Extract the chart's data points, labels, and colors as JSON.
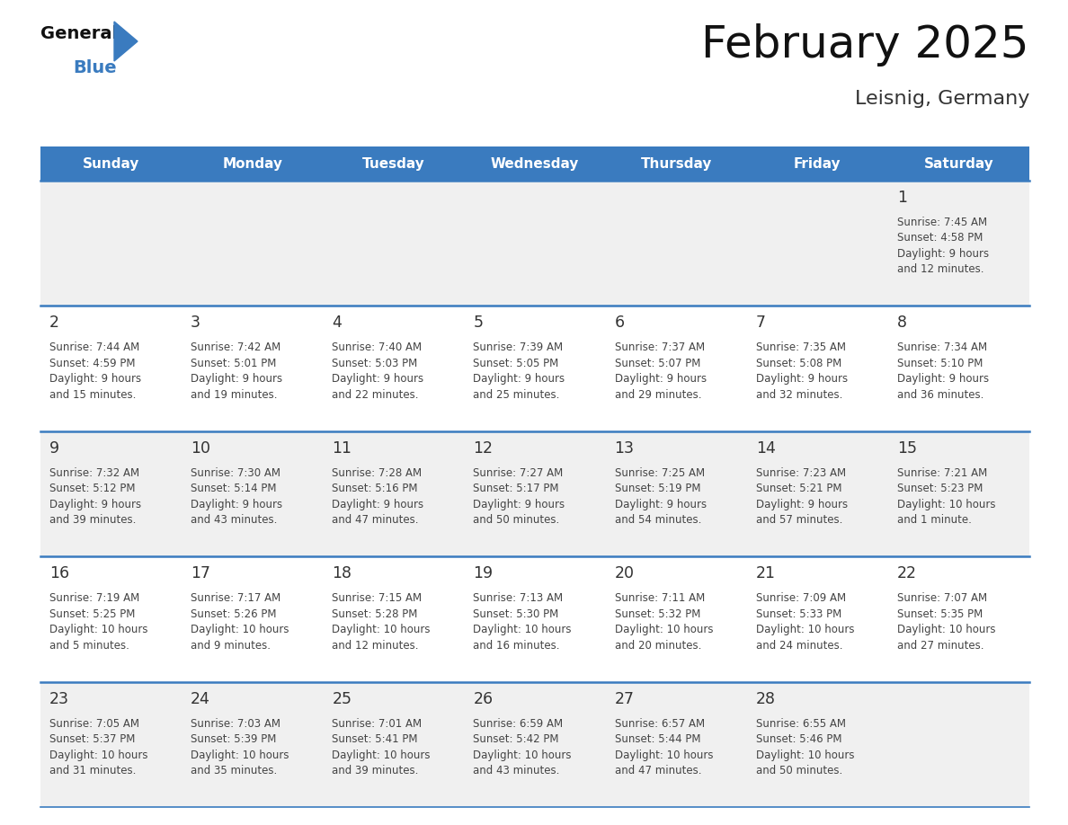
{
  "title": "February 2025",
  "subtitle": "Leisnig, Germany",
  "header_color": "#3a7bbf",
  "header_text_color": "#ffffff",
  "day_names": [
    "Sunday",
    "Monday",
    "Tuesday",
    "Wednesday",
    "Thursday",
    "Friday",
    "Saturday"
  ],
  "background_color": "#ffffff",
  "cell_bg_even": "#f0f0f0",
  "cell_bg_odd": "#ffffff",
  "border_color": "#3a7bbf",
  "number_color": "#333333",
  "text_color": "#444444",
  "days": [
    {
      "day": 1,
      "col": 6,
      "row": 0,
      "sunrise": "7:45 AM",
      "sunset": "4:58 PM",
      "daylight_h": "9 hours",
      "daylight_m": "12 minutes."
    },
    {
      "day": 2,
      "col": 0,
      "row": 1,
      "sunrise": "7:44 AM",
      "sunset": "4:59 PM",
      "daylight_h": "9 hours",
      "daylight_m": "15 minutes."
    },
    {
      "day": 3,
      "col": 1,
      "row": 1,
      "sunrise": "7:42 AM",
      "sunset": "5:01 PM",
      "daylight_h": "9 hours",
      "daylight_m": "19 minutes."
    },
    {
      "day": 4,
      "col": 2,
      "row": 1,
      "sunrise": "7:40 AM",
      "sunset": "5:03 PM",
      "daylight_h": "9 hours",
      "daylight_m": "22 minutes."
    },
    {
      "day": 5,
      "col": 3,
      "row": 1,
      "sunrise": "7:39 AM",
      "sunset": "5:05 PM",
      "daylight_h": "9 hours",
      "daylight_m": "25 minutes."
    },
    {
      "day": 6,
      "col": 4,
      "row": 1,
      "sunrise": "7:37 AM",
      "sunset": "5:07 PM",
      "daylight_h": "9 hours",
      "daylight_m": "29 minutes."
    },
    {
      "day": 7,
      "col": 5,
      "row": 1,
      "sunrise": "7:35 AM",
      "sunset": "5:08 PM",
      "daylight_h": "9 hours",
      "daylight_m": "32 minutes."
    },
    {
      "day": 8,
      "col": 6,
      "row": 1,
      "sunrise": "7:34 AM",
      "sunset": "5:10 PM",
      "daylight_h": "9 hours",
      "daylight_m": "36 minutes."
    },
    {
      "day": 9,
      "col": 0,
      "row": 2,
      "sunrise": "7:32 AM",
      "sunset": "5:12 PM",
      "daylight_h": "9 hours",
      "daylight_m": "39 minutes."
    },
    {
      "day": 10,
      "col": 1,
      "row": 2,
      "sunrise": "7:30 AM",
      "sunset": "5:14 PM",
      "daylight_h": "9 hours",
      "daylight_m": "43 minutes."
    },
    {
      "day": 11,
      "col": 2,
      "row": 2,
      "sunrise": "7:28 AM",
      "sunset": "5:16 PM",
      "daylight_h": "9 hours",
      "daylight_m": "47 minutes."
    },
    {
      "day": 12,
      "col": 3,
      "row": 2,
      "sunrise": "7:27 AM",
      "sunset": "5:17 PM",
      "daylight_h": "9 hours",
      "daylight_m": "50 minutes."
    },
    {
      "day": 13,
      "col": 4,
      "row": 2,
      "sunrise": "7:25 AM",
      "sunset": "5:19 PM",
      "daylight_h": "9 hours",
      "daylight_m": "54 minutes."
    },
    {
      "day": 14,
      "col": 5,
      "row": 2,
      "sunrise": "7:23 AM",
      "sunset": "5:21 PM",
      "daylight_h": "9 hours",
      "daylight_m": "57 minutes."
    },
    {
      "day": 15,
      "col": 6,
      "row": 2,
      "sunrise": "7:21 AM",
      "sunset": "5:23 PM",
      "daylight_h": "10 hours",
      "daylight_m": "1 minute."
    },
    {
      "day": 16,
      "col": 0,
      "row": 3,
      "sunrise": "7:19 AM",
      "sunset": "5:25 PM",
      "daylight_h": "10 hours",
      "daylight_m": "5 minutes."
    },
    {
      "day": 17,
      "col": 1,
      "row": 3,
      "sunrise": "7:17 AM",
      "sunset": "5:26 PM",
      "daylight_h": "10 hours",
      "daylight_m": "9 minutes."
    },
    {
      "day": 18,
      "col": 2,
      "row": 3,
      "sunrise": "7:15 AM",
      "sunset": "5:28 PM",
      "daylight_h": "10 hours",
      "daylight_m": "12 minutes."
    },
    {
      "day": 19,
      "col": 3,
      "row": 3,
      "sunrise": "7:13 AM",
      "sunset": "5:30 PM",
      "daylight_h": "10 hours",
      "daylight_m": "16 minutes."
    },
    {
      "day": 20,
      "col": 4,
      "row": 3,
      "sunrise": "7:11 AM",
      "sunset": "5:32 PM",
      "daylight_h": "10 hours",
      "daylight_m": "20 minutes."
    },
    {
      "day": 21,
      "col": 5,
      "row": 3,
      "sunrise": "7:09 AM",
      "sunset": "5:33 PM",
      "daylight_h": "10 hours",
      "daylight_m": "24 minutes."
    },
    {
      "day": 22,
      "col": 6,
      "row": 3,
      "sunrise": "7:07 AM",
      "sunset": "5:35 PM",
      "daylight_h": "10 hours",
      "daylight_m": "27 minutes."
    },
    {
      "day": 23,
      "col": 0,
      "row": 4,
      "sunrise": "7:05 AM",
      "sunset": "5:37 PM",
      "daylight_h": "10 hours",
      "daylight_m": "31 minutes."
    },
    {
      "day": 24,
      "col": 1,
      "row": 4,
      "sunrise": "7:03 AM",
      "sunset": "5:39 PM",
      "daylight_h": "10 hours",
      "daylight_m": "35 minutes."
    },
    {
      "day": 25,
      "col": 2,
      "row": 4,
      "sunrise": "7:01 AM",
      "sunset": "5:41 PM",
      "daylight_h": "10 hours",
      "daylight_m": "39 minutes."
    },
    {
      "day": 26,
      "col": 3,
      "row": 4,
      "sunrise": "6:59 AM",
      "sunset": "5:42 PM",
      "daylight_h": "10 hours",
      "daylight_m": "43 minutes."
    },
    {
      "day": 27,
      "col": 4,
      "row": 4,
      "sunrise": "6:57 AM",
      "sunset": "5:44 PM",
      "daylight_h": "10 hours",
      "daylight_m": "47 minutes."
    },
    {
      "day": 28,
      "col": 5,
      "row": 4,
      "sunrise": "6:55 AM",
      "sunset": "5:46 PM",
      "daylight_h": "10 hours",
      "daylight_m": "50 minutes."
    }
  ],
  "num_rows": 5,
  "logo_triangle_color": "#3a7bbf"
}
